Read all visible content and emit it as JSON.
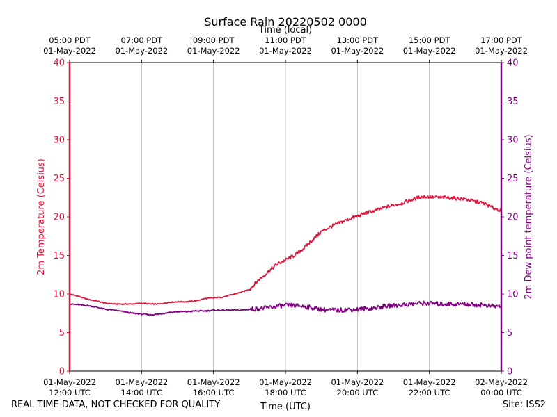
{
  "chart_data": {
    "type": "line",
    "title": "Surface Rain 20220502 0000",
    "top_axis_title": "Time (local)",
    "xlabel": "Time (UTC)",
    "ylabel_left": "2m Temperature (Celsius)",
    "ylabel_right": "2m Dew point temperature (Celsius)",
    "ylim": [
      0,
      40
    ],
    "yticks": [
      0,
      5,
      10,
      15,
      20,
      25,
      30,
      35,
      40
    ],
    "xlim_hours_utc": [
      12,
      24
    ],
    "xticks_bottom": [
      {
        "hour": 12,
        "line1": "01-May-2022",
        "line2": "12:00 UTC"
      },
      {
        "hour": 14,
        "line1": "01-May-2022",
        "line2": "14:00 UTC"
      },
      {
        "hour": 16,
        "line1": "01-May-2022",
        "line2": "16:00 UTC"
      },
      {
        "hour": 18,
        "line1": "01-May-2022",
        "line2": "18:00 UTC"
      },
      {
        "hour": 20,
        "line1": "01-May-2022",
        "line2": "20:00 UTC"
      },
      {
        "hour": 22,
        "line1": "01-May-2022",
        "line2": "22:00 UTC"
      },
      {
        "hour": 24,
        "line1": "02-May-2022",
        "line2": "00:00 UTC"
      }
    ],
    "xticks_top": [
      {
        "hour": 12,
        "line1": "05:00 PDT",
        "line2": "01-May-2022"
      },
      {
        "hour": 14,
        "line1": "07:00 PDT",
        "line2": "01-May-2022"
      },
      {
        "hour": 16,
        "line1": "09:00 PDT",
        "line2": "01-May-2022"
      },
      {
        "hour": 18,
        "line1": "11:00 PDT",
        "line2": "01-May-2022"
      },
      {
        "hour": 20,
        "line1": "13:00 PDT",
        "line2": "01-May-2022"
      },
      {
        "hour": 22,
        "line1": "15:00 PDT",
        "line2": "01-May-2022"
      },
      {
        "hour": 24,
        "line1": "17:00 PDT",
        "line2": "01-May-2022"
      }
    ],
    "grid": "vertical",
    "series": [
      {
        "name": "2m Temperature",
        "color": "#dc143c",
        "x": [
          12.0,
          12.25,
          12.5,
          12.75,
          13.0,
          13.25,
          13.5,
          13.75,
          14.0,
          14.25,
          14.5,
          14.75,
          15.0,
          15.25,
          15.5,
          15.75,
          16.0,
          16.25,
          16.5,
          16.75,
          17.0,
          17.25,
          17.5,
          17.75,
          18.0,
          18.25,
          18.5,
          18.75,
          19.0,
          19.25,
          19.5,
          19.75,
          20.0,
          20.25,
          20.5,
          20.75,
          21.0,
          21.25,
          21.5,
          21.75,
          22.0,
          22.25,
          22.5,
          22.75,
          23.0,
          23.25,
          23.5,
          23.75,
          24.0
        ],
        "values": [
          10.0,
          9.7,
          9.3,
          9.1,
          8.8,
          8.7,
          8.7,
          8.7,
          8.8,
          8.7,
          8.7,
          8.9,
          9.0,
          9.0,
          9.1,
          9.4,
          9.5,
          9.6,
          9.9,
          10.2,
          10.6,
          11.8,
          12.8,
          13.8,
          14.4,
          15.0,
          15.9,
          17.0,
          18.1,
          18.7,
          19.2,
          19.7,
          20.1,
          20.5,
          20.8,
          21.2,
          21.5,
          21.8,
          22.2,
          22.6,
          22.6,
          22.5,
          22.5,
          22.4,
          22.3,
          22.0,
          21.8,
          21.2,
          20.8
        ]
      },
      {
        "name": "2m Dew point temperature",
        "color": "#800080",
        "x": [
          12.0,
          12.25,
          12.5,
          12.75,
          13.0,
          13.25,
          13.5,
          13.75,
          14.0,
          14.25,
          14.5,
          14.75,
          15.0,
          15.25,
          15.5,
          15.75,
          16.0,
          16.25,
          16.5,
          16.75,
          17.0,
          17.25,
          17.5,
          17.75,
          18.0,
          18.25,
          18.5,
          18.75,
          19.0,
          19.25,
          19.5,
          19.75,
          20.0,
          20.25,
          20.5,
          20.75,
          21.0,
          21.25,
          21.5,
          21.75,
          22.0,
          22.25,
          22.5,
          22.75,
          23.0,
          23.25,
          23.5,
          23.75,
          24.0
        ],
        "values": [
          8.7,
          8.6,
          8.5,
          8.3,
          8.0,
          7.9,
          7.7,
          7.5,
          7.4,
          7.3,
          7.4,
          7.6,
          7.7,
          7.7,
          7.8,
          7.8,
          7.9,
          7.9,
          7.9,
          7.9,
          8.0,
          8.1,
          8.2,
          8.4,
          8.5,
          8.5,
          8.4,
          8.2,
          8.0,
          7.9,
          7.9,
          8.0,
          8.0,
          8.1,
          8.2,
          8.4,
          8.5,
          8.6,
          8.7,
          8.8,
          8.8,
          8.7,
          8.7,
          8.7,
          8.7,
          8.6,
          8.6,
          8.4,
          8.4
        ]
      }
    ]
  },
  "footer": {
    "disclaimer": "REAL TIME DATA, NOT CHECKED FOR QUALITY",
    "site": "Site: ISS2"
  }
}
